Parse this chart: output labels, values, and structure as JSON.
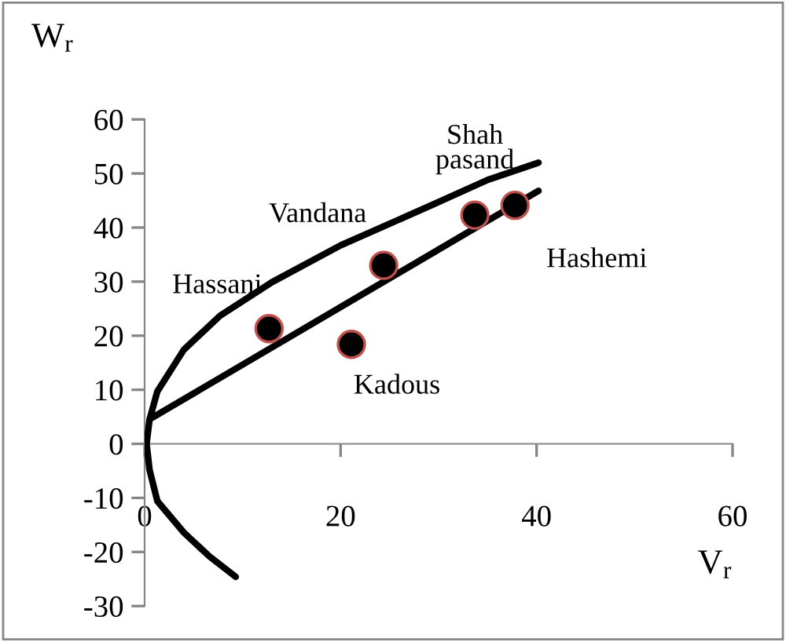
{
  "chart_data": {
    "type": "scatter",
    "xlabel": "V$_{r}$",
    "ylabel": "W$_{r}$",
    "xlim": [
      0,
      60
    ],
    "ylim": [
      -30,
      60
    ],
    "xticks": [
      0,
      20,
      40,
      60
    ],
    "yticks": [
      -30,
      -20,
      -10,
      0,
      10,
      20,
      30,
      40,
      50,
      60
    ],
    "grid": false,
    "legend": false,
    "series": [
      {
        "marker": "circle",
        "color": "#000000",
        "x": [
          12.7,
          21.1,
          24.4,
          33.7,
          37.8
        ],
        "values": [
          21.3,
          18.4,
          33.0,
          42.3,
          44.1
        ]
      },
      {
        "type": "line",
        "color": "#000000",
        "line_style": "solid",
        "x": [
          0.75,
          40.2
        ],
        "values": [
          4.8,
          46.8
        ]
      },
      {
        "type": "line",
        "color": "#000000",
        "line_style": "solid",
        "x": [
          9.3,
          6.6,
          4.0,
          1.3,
          0.5,
          0.2,
          0.5,
          1.3,
          4.0,
          7.7,
          13.0,
          20.0,
          29.6,
          35.0,
          40.2
        ],
        "values": [
          -24.6,
          -20.8,
          -16.4,
          -10.6,
          -4.8,
          0,
          4.5,
          9.7,
          17.4,
          23.7,
          29.9,
          36.7,
          44.4,
          48.8,
          52.0
        ]
      }
    ],
    "annotations": [
      {
        "text": "Hassani",
        "x": 12.7,
        "y": 21.3
      },
      {
        "text": "Kadous",
        "x": 21.1,
        "y": 18.4
      },
      {
        "text": "Vandana",
        "x": 24.4,
        "y": 33.0
      },
      {
        "text": "Shah\npasand",
        "x": 33.7,
        "y": 42.3
      },
      {
        "text": "Hashemi",
        "x": 37.8,
        "y": 44.1
      }
    ]
  }
}
